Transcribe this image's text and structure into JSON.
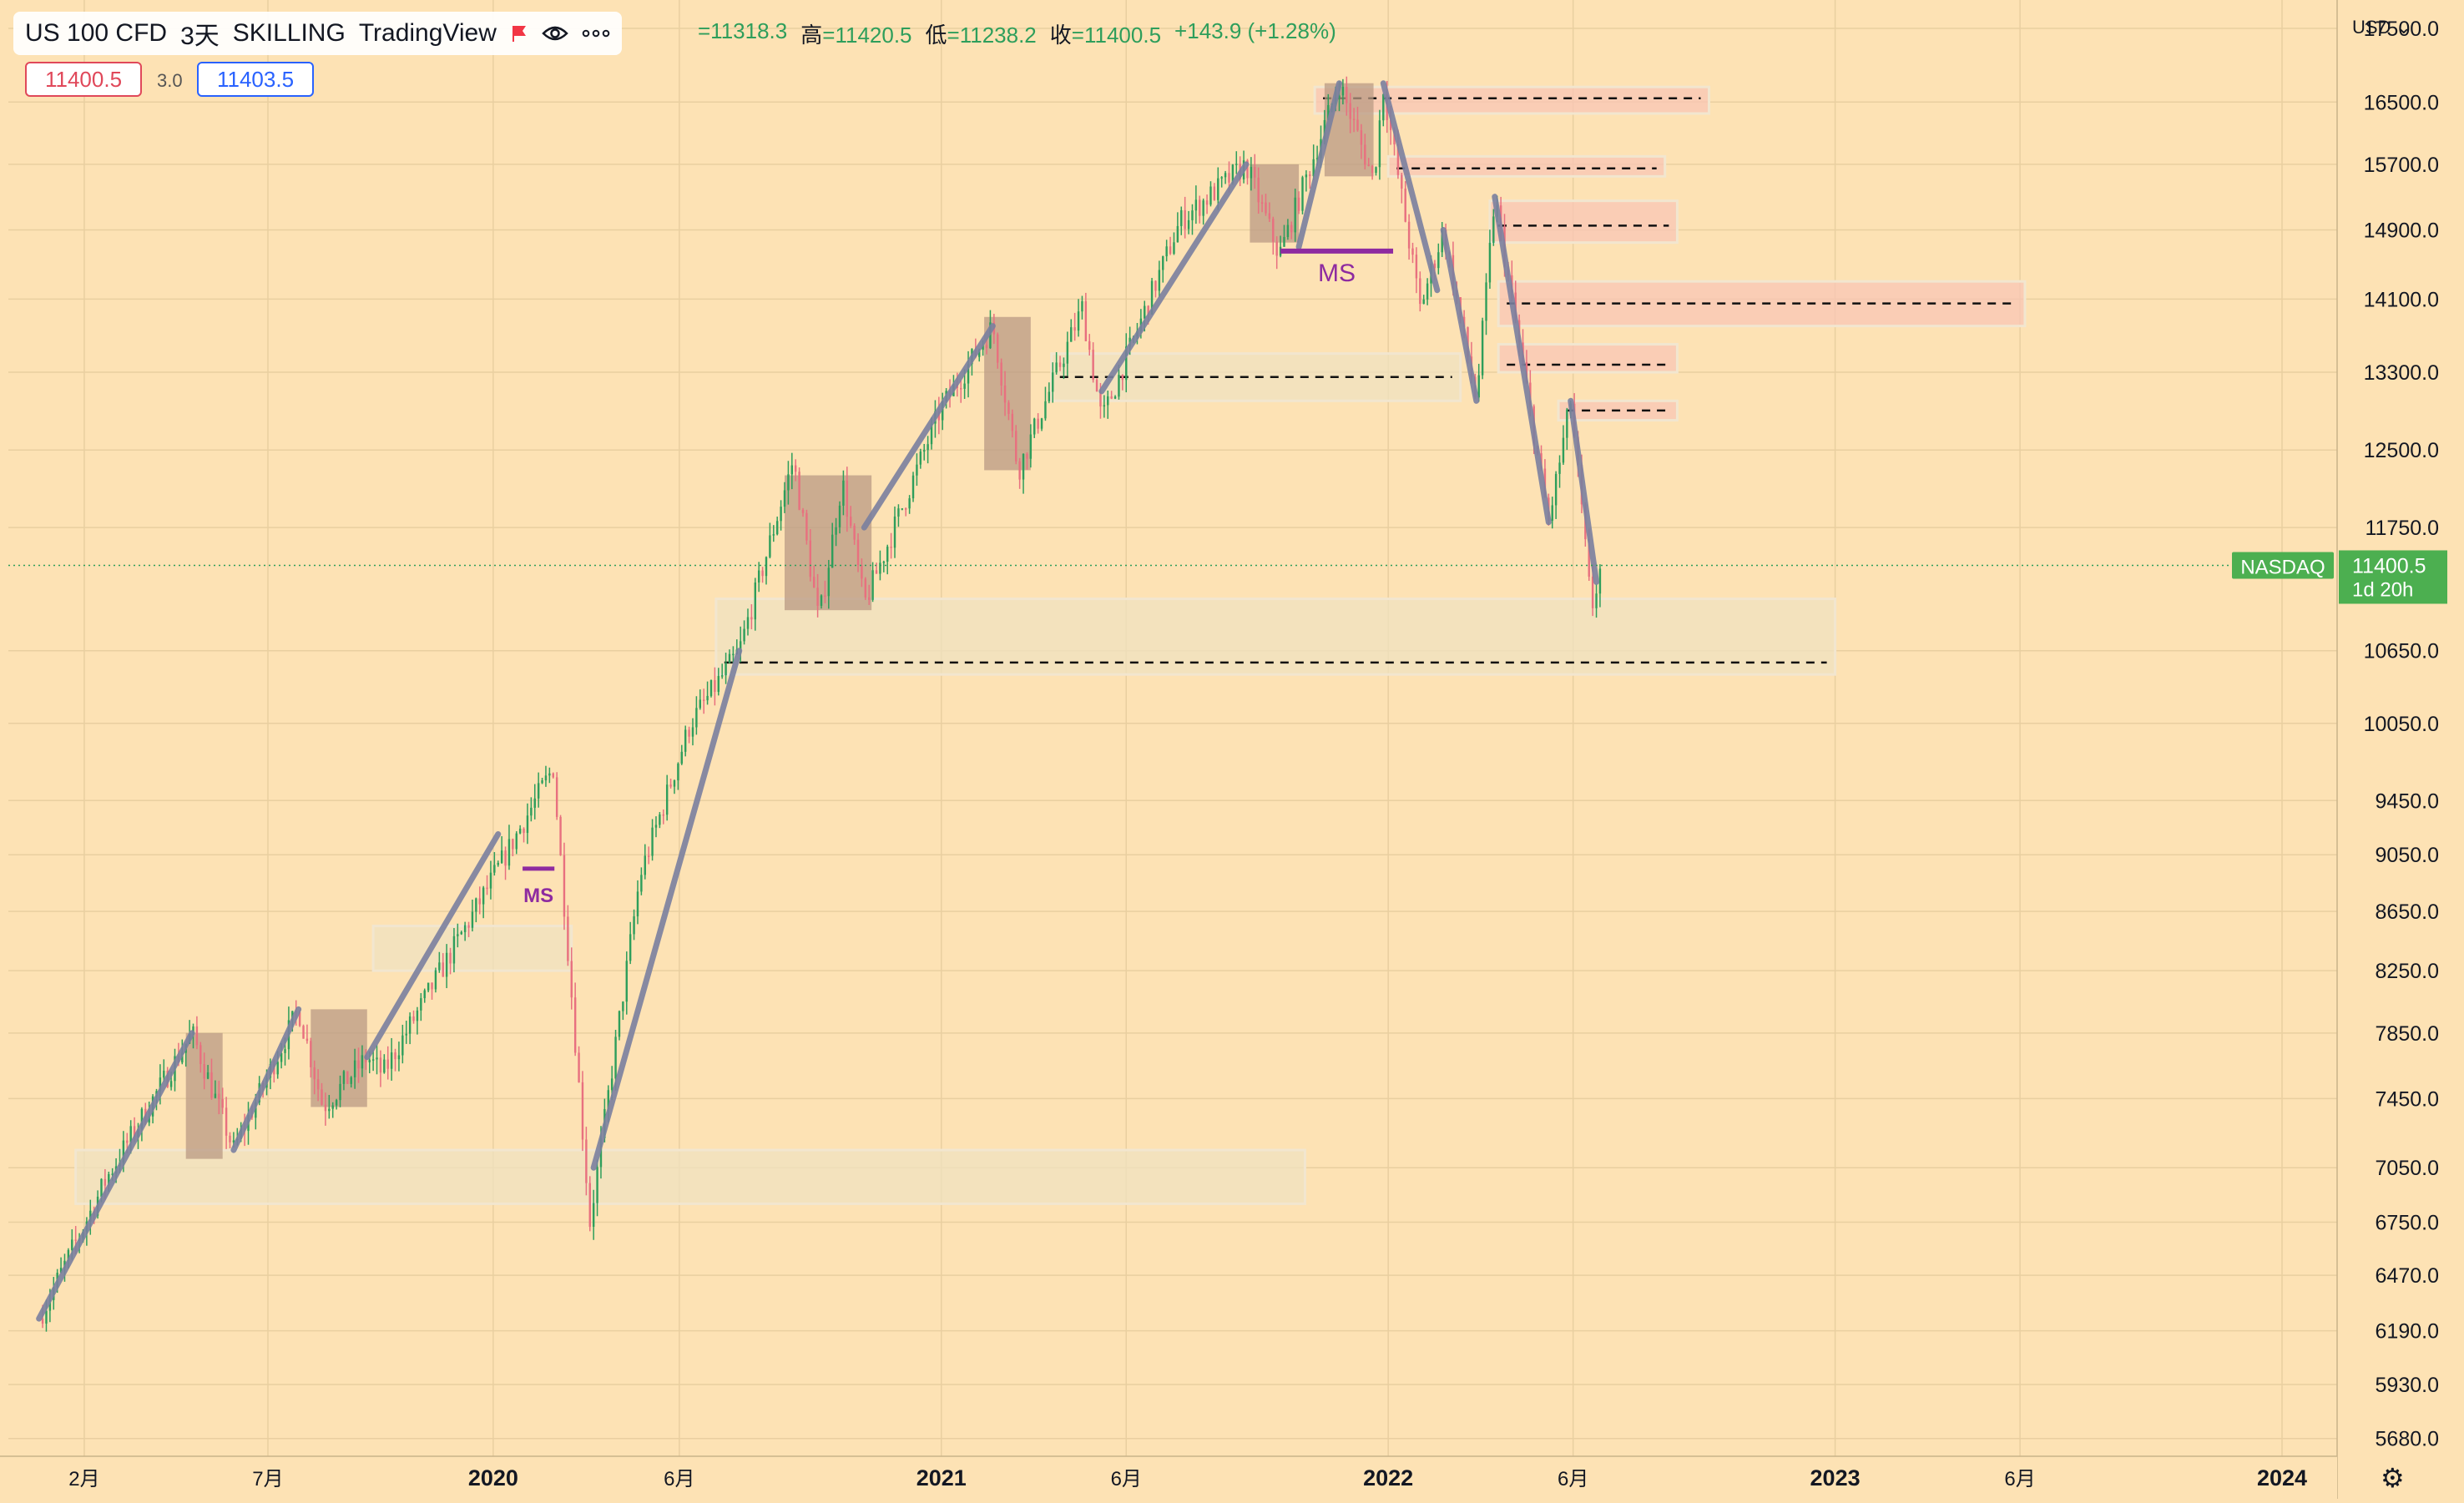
{
  "header": {
    "symbol": "US 100 CFD",
    "interval": "3天",
    "broker": "SKILLING",
    "platform": "TradingView",
    "ohlc": {
      "open": "=11318.3",
      "high_label": "高",
      "high": "=11420.5",
      "low_label": "低",
      "low": "=11238.2",
      "close_label": "收",
      "close": "=11400.5",
      "change": "+143.9 (+1.28%)"
    },
    "sell_price": "11400.5",
    "spread": "3.0",
    "buy_price": "11403.5",
    "currency": "USD"
  },
  "colors": {
    "background": "#FDE2B4",
    "up": "#2E9E5B",
    "down": "#E8707F",
    "trendline": "#7A7F9E",
    "ms_line": "#8E2BA0",
    "demand_zone": "#EFE2C0",
    "supply_zone": "#F8C6B5",
    "range_box": "#B99A84",
    "price_tag": "#4CAF50"
  },
  "chart_data": {
    "type": "candlestick",
    "title": "US 100 CFD · 3天 · SKILLING",
    "y_axis": {
      "scale": "log",
      "ylim": [
        5600,
        17900
      ],
      "ticks": [
        5680,
        5930,
        6190,
        6470,
        6750,
        7050,
        7450,
        7850,
        8250,
        8650,
        9050,
        9450,
        10050,
        10650,
        11750,
        12500,
        13300,
        14100,
        14900,
        15700,
        16500,
        17500
      ],
      "tick_labels": [
        "5680.0",
        "5930.0",
        "6190.0",
        "6470.0",
        "6750.0",
        "7050.0",
        "7450.0",
        "7850.0",
        "8250.0",
        "8650.0",
        "9050.0",
        "9450.0",
        "10050.0",
        "10650.0",
        "11750.0",
        "12500.0",
        "13300.0",
        "14100.0",
        "14900.0",
        "15700.0",
        "16500.0",
        "17500.0"
      ]
    },
    "x_axis": {
      "range": [
        "2018-12-01",
        "2024-02-15"
      ],
      "ticks": [
        {
          "date": "2019-02-01",
          "label": "2月",
          "bold": false
        },
        {
          "date": "2019-07-01",
          "label": "7月",
          "bold": false
        },
        {
          "date": "2020-01-01",
          "label": "2020",
          "bold": true
        },
        {
          "date": "2020-06-01",
          "label": "6月",
          "bold": false
        },
        {
          "date": "2021-01-01",
          "label": "2021",
          "bold": true
        },
        {
          "date": "2021-06-01",
          "label": "6月",
          "bold": false
        },
        {
          "date": "2022-01-01",
          "label": "2022",
          "bold": true
        },
        {
          "date": "2022-06-01",
          "label": "6月",
          "bold": false
        },
        {
          "date": "2023-01-01",
          "label": "2023",
          "bold": true
        },
        {
          "date": "2023-06-01",
          "label": "6月",
          "bold": false
        },
        {
          "date": "2024-01-01",
          "label": "2024",
          "bold": true
        }
      ]
    },
    "price_path": [
      [
        "2018-12-26",
        6250
      ],
      [
        "2019-02-20",
        7000
      ],
      [
        "2019-04-30",
        7850
      ],
      [
        "2019-06-03",
        7150
      ],
      [
        "2019-07-26",
        8000
      ],
      [
        "2019-08-15",
        7400
      ],
      [
        "2019-09-20",
        7700
      ],
      [
        "2019-10-03",
        7600
      ],
      [
        "2019-12-20",
        8700
      ],
      [
        "2020-02-19",
        9700
      ],
      [
        "2020-03-20",
        6750
      ],
      [
        "2020-04-30",
        8900
      ],
      [
        "2020-06-10",
        10050
      ],
      [
        "2020-07-20",
        10650
      ],
      [
        "2020-09-02",
        12400
      ],
      [
        "2020-09-23",
        10900
      ],
      [
        "2020-10-12",
        12200
      ],
      [
        "2020-10-30",
        11050
      ],
      [
        "2020-12-31",
        12900
      ],
      [
        "2021-02-12",
        13800
      ],
      [
        "2021-03-05",
        12300
      ],
      [
        "2021-04-26",
        14000
      ],
      [
        "2021-05-12",
        12800
      ],
      [
        "2021-07-15",
        15000
      ],
      [
        "2021-09-07",
        15700
      ],
      [
        "2021-10-04",
        14600
      ],
      [
        "2021-11-22",
        16750
      ],
      [
        "2021-12-20",
        15500
      ],
      [
        "2021-12-28",
        16700
      ],
      [
        "2022-01-27",
        14000
      ],
      [
        "2022-02-15",
        14900
      ],
      [
        "2022-03-14",
        13000
      ],
      [
        "2022-03-29",
        15300
      ],
      [
        "2022-05-12",
        11800
      ],
      [
        "2022-05-30",
        13000
      ],
      [
        "2022-06-16",
        11000
      ],
      [
        "2022-06-24",
        11400
      ]
    ],
    "last_price": 11400.5,
    "last_price_tag": {
      "symbol": "NASDAQ",
      "price": "11400.5",
      "countdown": "1d 20h"
    },
    "annotations": {
      "trendlines": [
        [
          [
            "2018-12-26",
            6250
          ],
          [
            "2019-04-30",
            7850
          ]
        ],
        [
          [
            "2019-06-03",
            7150
          ],
          [
            "2019-07-26",
            8000
          ]
        ],
        [
          [
            "2019-09-20",
            7700
          ],
          [
            "2020-01-05",
            9200
          ]
        ],
        [
          [
            "2020-03-23",
            7050
          ],
          [
            "2020-07-20",
            10650
          ]
        ],
        [
          [
            "2020-10-30",
            11750
          ],
          [
            "2021-02-12",
            13800
          ]
        ],
        [
          [
            "2021-05-12",
            13100
          ],
          [
            "2021-09-07",
            15700
          ]
        ],
        [
          [
            "2021-10-20",
            14700
          ],
          [
            "2021-11-22",
            16750
          ]
        ],
        [
          [
            "2021-12-28",
            16750
          ],
          [
            "2022-02-10",
            14200
          ]
        ],
        [
          [
            "2022-02-15",
            14900
          ],
          [
            "2022-03-14",
            13000
          ]
        ],
        [
          [
            "2022-03-29",
            15300
          ],
          [
            "2022-05-12",
            11800
          ]
        ],
        [
          [
            "2022-05-30",
            13000
          ],
          [
            "2022-06-20",
            11250
          ]
        ]
      ],
      "range_boxes": [
        {
          "x": [
            "2019-04-25",
            "2019-05-25"
          ],
          "y": [
            7100,
            7850
          ]
        },
        {
          "x": [
            "2019-08-05",
            "2019-09-20"
          ],
          "y": [
            7400,
            8000
          ]
        },
        {
          "x": [
            "2020-08-26",
            "2020-11-05"
          ],
          "y": [
            11000,
            12250
          ]
        },
        {
          "x": [
            "2021-02-05",
            "2021-03-15"
          ],
          "y": [
            12300,
            13900
          ]
        },
        {
          "x": [
            "2021-09-10",
            "2021-10-20"
          ],
          "y": [
            14750,
            15700
          ]
        },
        {
          "x": [
            "2021-11-10",
            "2021-12-20"
          ],
          "y": [
            15550,
            16750
          ]
        }
      ],
      "demand_zones": [
        {
          "x": [
            "2019-01-25",
            "2021-10-25"
          ],
          "y": [
            6850,
            7150
          ],
          "midline": false
        },
        {
          "x": [
            "2019-09-25",
            "2020-03-05"
          ],
          "y": [
            8250,
            8550
          ],
          "midline": false
        },
        {
          "x": [
            "2020-07-01",
            "2023-01-01"
          ],
          "y": [
            10450,
            11100
          ],
          "midline": 10550
        },
        {
          "x": [
            "2021-04-01",
            "2022-03-01"
          ],
          "y": [
            13000,
            13500
          ],
          "midline": 13250
        }
      ],
      "supply_zones": [
        {
          "x": [
            "2021-11-02",
            "2022-09-20"
          ],
          "y": [
            16350,
            16700
          ],
          "midline": 16550
        },
        {
          "x": [
            "2022-01-01",
            "2022-08-15"
          ],
          "y": [
            15550,
            15800
          ],
          "midline": 15650
        },
        {
          "x": [
            "2022-03-25",
            "2022-08-25"
          ],
          "y": [
            14750,
            15250
          ],
          "midline": 14950
        },
        {
          "x": [
            "2022-04-01",
            "2023-06-05"
          ],
          "y": [
            13800,
            14300
          ],
          "midline": 14050
        },
        {
          "x": [
            "2022-04-01",
            "2022-08-25"
          ],
          "y": [
            13300,
            13600
          ],
          "midline": 13380
        },
        {
          "x": [
            "2022-05-20",
            "2022-08-25"
          ],
          "y": [
            12800,
            13000
          ],
          "midline": 12900
        }
      ],
      "market_structure_breaks": [
        {
          "label": "MS",
          "x": [
            "2020-01-25",
            "2020-02-20"
          ],
          "y": 8950,
          "size": "small"
        },
        {
          "label": "MS",
          "x": [
            "2021-10-05",
            "2022-01-05"
          ],
          "y": 14650,
          "size": "large"
        }
      ]
    }
  }
}
